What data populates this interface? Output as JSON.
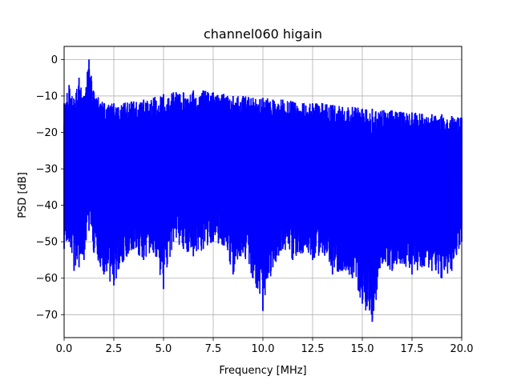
{
  "chart_data": {
    "type": "line",
    "title": "channel060 higain",
    "xlabel": "Frequency [MHz]",
    "ylabel": "PSD [dB]",
    "xlim": [
      0,
      20
    ],
    "ylim": [
      -76.3,
      3.6
    ],
    "xticks": [
      0,
      2.5,
      5,
      7.5,
      10,
      12.5,
      15,
      17.5,
      20
    ],
    "xtick_labels": [
      "0.0",
      "2.5",
      "5.0",
      "7.5",
      "10.0",
      "12.5",
      "15.0",
      "17.5",
      "20.0"
    ],
    "yticks": [
      0,
      -10,
      -20,
      -30,
      -40,
      -50,
      -60,
      -70
    ],
    "ytick_labels": [
      "0",
      "−10",
      "−20",
      "−30",
      "−40",
      "−50",
      "−60",
      "−70"
    ],
    "grid": true,
    "series": [
      {
        "color": "#0000ff",
        "x": [
          0.0,
          0.25,
          0.5,
          0.75,
          1.0,
          1.25,
          1.5,
          2.0,
          2.5,
          3.0,
          3.5,
          4.0,
          4.5,
          5.0,
          5.5,
          6.0,
          6.5,
          7.0,
          7.5,
          8.0,
          8.5,
          9.0,
          9.5,
          10.0,
          10.5,
          11.0,
          11.5,
          12.0,
          12.5,
          13.0,
          13.5,
          14.0,
          14.5,
          15.0,
          15.5,
          16.0,
          16.5,
          17.0,
          17.5,
          18.0,
          18.5,
          19.0,
          19.5,
          20.0
        ],
        "upper": [
          -12,
          -7,
          -11,
          -5,
          -10,
          0,
          -9,
          -12,
          -12,
          -12,
          -11.5,
          -11,
          -10.5,
          -9.5,
          -9,
          -9,
          -8.5,
          -8.5,
          -9,
          -9.5,
          -10,
          -10,
          -10.5,
          -10.5,
          -11,
          -11,
          -11.5,
          -12,
          -12,
          -12,
          -12.5,
          -13,
          -13,
          -13.5,
          -13.5,
          -14,
          -14,
          -14.5,
          -14.5,
          -15,
          -15,
          -15,
          -15.5,
          -16
        ],
        "lower": [
          -52,
          -50,
          -58,
          -57,
          -55,
          -47,
          -53,
          -59,
          -62,
          -55,
          -52,
          -55,
          -53,
          -63,
          -50,
          -52,
          -54,
          -52,
          -50,
          -51,
          -59,
          -53,
          -60,
          -69,
          -57,
          -52,
          -55,
          -53,
          -55,
          -53,
          -59,
          -58,
          -60,
          -67,
          -72,
          -56,
          -58,
          -56,
          -59,
          -57,
          -58,
          -60,
          -58,
          -50
        ]
      }
    ]
  }
}
